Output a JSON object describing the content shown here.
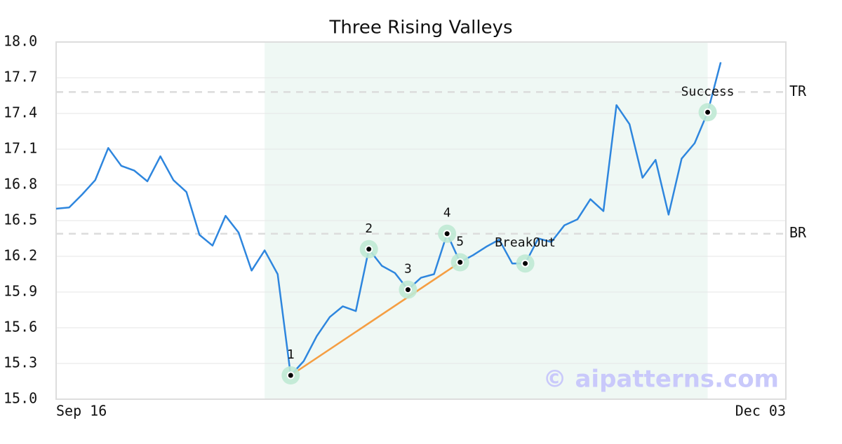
{
  "chart_data": {
    "type": "line",
    "title": "Three Rising Valleys",
    "watermark": "© aipatterns.com",
    "x": [
      0,
      1,
      2,
      3,
      4,
      5,
      6,
      7,
      8,
      9,
      10,
      11,
      12,
      13,
      14,
      15,
      16,
      17,
      18,
      19,
      20,
      21,
      22,
      23,
      24,
      25,
      26,
      27,
      28,
      29,
      30,
      31,
      32,
      33,
      34,
      35,
      36,
      37,
      38,
      39,
      40,
      41,
      42,
      43,
      44,
      45,
      46,
      47,
      48,
      49,
      50,
      51
    ],
    "series": [
      {
        "color": "#2e86de",
        "values": [
          16.6,
          16.61,
          16.72,
          16.84,
          17.11,
          16.96,
          16.92,
          16.83,
          17.04,
          16.84,
          16.74,
          16.38,
          16.29,
          16.54,
          16.4,
          16.08,
          16.25,
          16.05,
          15.2,
          15.32,
          15.53,
          15.69,
          15.78,
          15.74,
          16.26,
          16.12,
          16.06,
          15.92,
          16.02,
          16.05,
          16.39,
          16.15,
          16.21,
          16.28,
          16.34,
          16.14,
          16.14,
          16.35,
          16.32,
          16.46,
          16.51,
          16.68,
          16.58,
          17.47,
          17.31,
          16.86,
          17.01,
          16.55,
          17.02,
          17.15,
          17.41,
          17.83
        ]
      }
    ],
    "xlim": [
      0,
      56
    ],
    "xticks": [
      {
        "value": 0,
        "label": "Sep 16"
      },
      {
        "value": 56,
        "label": "Dec 03"
      }
    ],
    "ylim": [
      15.0,
      18.0
    ],
    "yticks": [
      {
        "value": 15.0,
        "label": "15.0"
      },
      15.3,
      15.6,
      15.9,
      16.2,
      16.5,
      16.8,
      17.1,
      17.4,
      17.7,
      {
        "value": 18.0,
        "label": "18.0"
      }
    ],
    "grid": true,
    "shaded_region": {
      "x": [
        16,
        50
      ],
      "color": "#eff8f4"
    },
    "reference_lines": [
      {
        "label": "TR",
        "value": 17.58
      },
      {
        "label": "BR",
        "value": 16.39
      }
    ],
    "annotations": [
      {
        "label": "1",
        "x": 18,
        "y": 15.2
      },
      {
        "label": "2",
        "x": 24,
        "y": 16.26
      },
      {
        "label": "3",
        "x": 27,
        "y": 15.92
      },
      {
        "label": "4",
        "x": 30,
        "y": 16.39
      },
      {
        "label": "5",
        "x": 31,
        "y": 16.15
      },
      {
        "label": "BreakOut",
        "x": 36,
        "y": 16.14
      },
      {
        "label": "Success",
        "x": 50,
        "y": 17.41
      }
    ],
    "trendline": {
      "x": [
        18,
        31
      ],
      "y": [
        15.2,
        16.15
      ],
      "color": "#f59e42"
    }
  }
}
